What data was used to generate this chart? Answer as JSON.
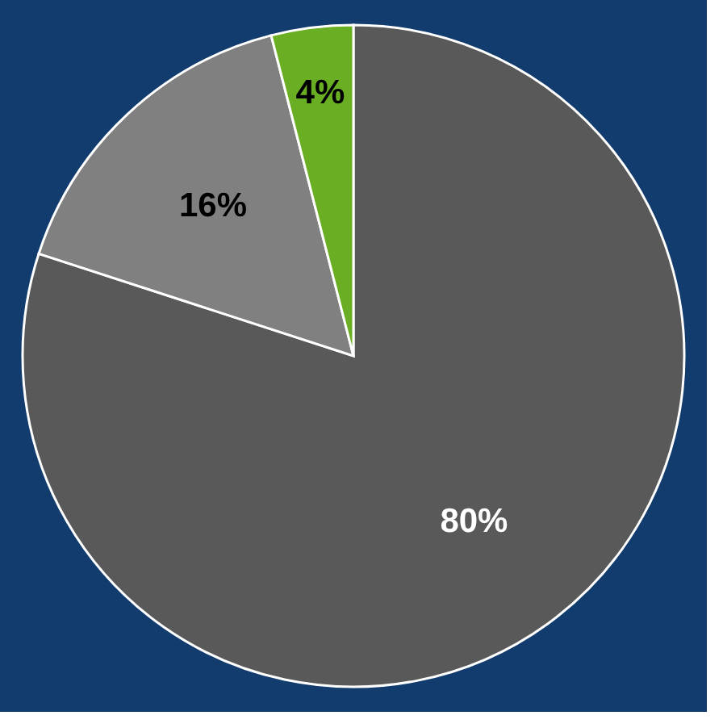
{
  "chart_data": {
    "type": "pie",
    "categories": [
      null,
      null,
      null
    ],
    "values": [
      80,
      16,
      4
    ],
    "colors": [
      "#595959",
      "#808080",
      "#6aaf23"
    ],
    "value_labels": [
      "80%",
      "16%",
      "4%"
    ],
    "legend": false
  }
}
